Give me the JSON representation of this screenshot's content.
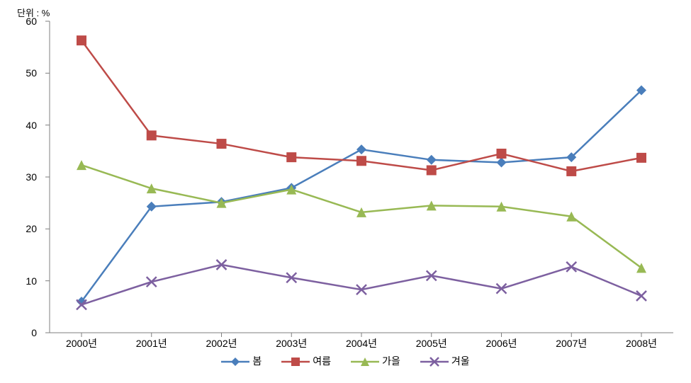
{
  "chart": {
    "type": "line",
    "unit_label": "단위 : %",
    "background_color": "#ffffff",
    "axis_color": "#7f7f7f",
    "axis_width": 1,
    "tick_font_size": 14,
    "legend_font_size": 14,
    "unit_font_size": 13,
    "y": {
      "min": 0,
      "max": 60,
      "step": 10,
      "ticks": [
        0,
        10,
        20,
        30,
        40,
        50,
        60
      ]
    },
    "x": {
      "categories": [
        "2000년",
        "2001년",
        "2002년",
        "2003년",
        "2004년",
        "2005년",
        "2006년",
        "2007년",
        "2008년"
      ]
    },
    "series": [
      {
        "name": "봄",
        "color": "#4a7ebb",
        "marker": "diamond",
        "marker_size": 7,
        "line_width": 2.5,
        "values": [
          6.0,
          24.3,
          25.2,
          27.9,
          35.3,
          33.3,
          32.8,
          33.8,
          46.7
        ]
      },
      {
        "name": "여름",
        "color": "#be4b48",
        "marker": "square",
        "marker_size": 7,
        "line_width": 2.5,
        "values": [
          56.3,
          38.0,
          36.4,
          33.8,
          33.1,
          31.3,
          34.5,
          31.1,
          33.7
        ]
      },
      {
        "name": "가을",
        "color": "#98b954",
        "marker": "triangle",
        "marker_size": 7,
        "line_width": 2.5,
        "values": [
          32.3,
          27.8,
          25.0,
          27.6,
          23.2,
          24.5,
          24.3,
          22.4,
          12.5
        ]
      },
      {
        "name": "겨울",
        "color": "#7d60a0",
        "marker": "x",
        "marker_size": 7,
        "line_width": 2.5,
        "values": [
          5.4,
          9.8,
          13.1,
          10.6,
          8.3,
          11.0,
          8.5,
          12.7,
          7.1
        ]
      }
    ]
  }
}
